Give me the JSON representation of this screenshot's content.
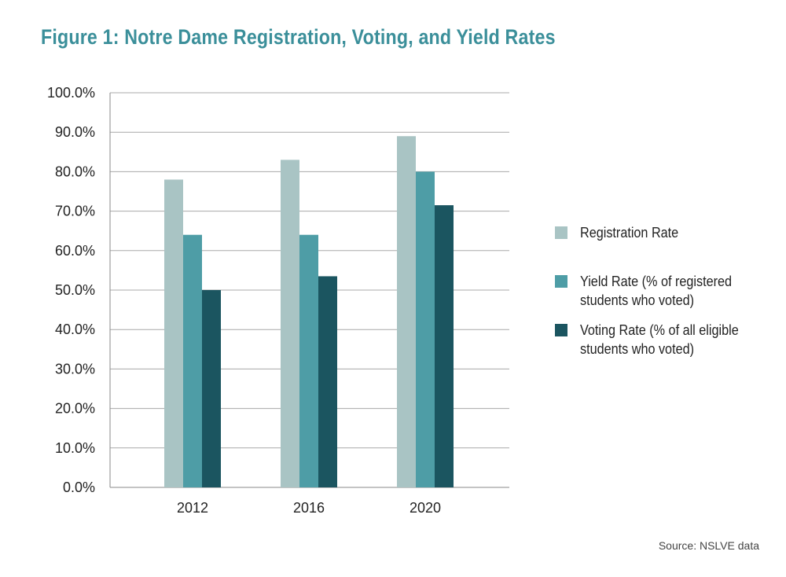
{
  "chart_data": {
    "type": "bar",
    "title": "Figure 1: Notre Dame Registration, Voting, and Yield Rates",
    "categories": [
      "2012",
      "2016",
      "2020"
    ],
    "series": [
      {
        "name": "Registration Rate",
        "color": "#a9c4c4",
        "values": [
          78.0,
          83.0,
          89.0
        ]
      },
      {
        "name": "Yield Rate (% of registered students who voted)",
        "color": "#4e9da6",
        "values": [
          64.0,
          64.0,
          80.0
        ]
      },
      {
        "name": "Voting Rate (% of all eligible students who voted)",
        "color": "#1b5560",
        "values": [
          50.0,
          53.5,
          71.5
        ]
      }
    ],
    "yticks": [
      "0.0%",
      "10.0%",
      "20.0%",
      "30.0%",
      "40.0%",
      "50.0%",
      "60.0%",
      "70.0%",
      "80.0%",
      "90.0%",
      "100.0%"
    ],
    "ylim": [
      0,
      100
    ],
    "xlabel": "",
    "ylabel": "",
    "grid": true,
    "legend_position": "right",
    "legend": {
      "registration": "Registration Rate",
      "yield": "Yield Rate (% of registered students who voted)",
      "voting": "Voting Rate (% of all eligible students who voted)"
    },
    "source": "Source: NSLVE data"
  }
}
